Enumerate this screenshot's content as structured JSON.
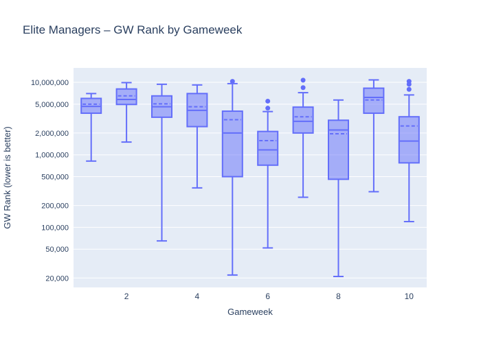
{
  "title": "Elite Managers – GW Rank by Gameweek",
  "colors": {
    "accent": "#636efa",
    "box_fill": "rgba(99,110,250,0.5)",
    "plot_bg": "#e5ecf6",
    "grid": "#ffffff",
    "text": "#2a3f5f"
  },
  "chart_data": {
    "type": "box",
    "title": "Elite Managers – GW Rank by Gameweek",
    "xlabel": "Gameweek",
    "ylabel": "GW Rank (lower is better)",
    "y_scale": "log",
    "grid": "on",
    "x_range": [
      0.5,
      10.5
    ],
    "y_range": [
      15000,
      15800000
    ],
    "x_ticks": [
      {
        "value": 2,
        "label": "2"
      },
      {
        "value": 4,
        "label": "4"
      },
      {
        "value": 6,
        "label": "6"
      },
      {
        "value": 8,
        "label": "8"
      },
      {
        "value": 10,
        "label": "10"
      }
    ],
    "y_ticks": [
      {
        "value": 10000000,
        "label": "10,000,000"
      },
      {
        "value": 5000000,
        "label": "5,000,000"
      },
      {
        "value": 2000000,
        "label": "2,000,000"
      },
      {
        "value": 1000000,
        "label": "1,000,000"
      },
      {
        "value": 500000,
        "label": "500,000"
      },
      {
        "value": 200000,
        "label": "200,000"
      },
      {
        "value": 100000,
        "label": "100,000"
      },
      {
        "value": 50000,
        "label": "50,000"
      },
      {
        "value": 20000,
        "label": "20,000"
      }
    ],
    "boxes": [
      {
        "gameweek": 1,
        "low": 820000,
        "q1": 3750000,
        "median": 4650000,
        "mean": 5000000,
        "q3": 6000000,
        "high": 7000000,
        "outliers": []
      },
      {
        "gameweek": 2,
        "low": 1500000,
        "q1": 4950000,
        "median": 5800000,
        "mean": 6500000,
        "q3": 8100000,
        "high": 9900000,
        "outliers": []
      },
      {
        "gameweek": 3,
        "low": 65000,
        "q1": 3300000,
        "median": 4600000,
        "mean": 5050000,
        "q3": 6500000,
        "high": 9400000,
        "outliers": []
      },
      {
        "gameweek": 4,
        "low": 350000,
        "q1": 2450000,
        "median": 4100000,
        "mean": 4600000,
        "q3": 7000000,
        "high": 9200000,
        "outliers": []
      },
      {
        "gameweek": 5,
        "low": 22000,
        "q1": 500000,
        "median": 2000000,
        "mean": 3050000,
        "q3": 4000000,
        "high": 9600000,
        "outliers": [
          10300000
        ]
      },
      {
        "gameweek": 6,
        "low": 52000,
        "q1": 720000,
        "median": 1170000,
        "mean": 1570000,
        "q3": 2100000,
        "high": 3950000,
        "outliers": [
          5500000,
          4400000
        ]
      },
      {
        "gameweek": 7,
        "low": 260000,
        "q1": 2000000,
        "median": 2900000,
        "mean": 3350000,
        "q3": 4550000,
        "high": 7200000,
        "outliers": [
          10700000,
          8450000
        ]
      },
      {
        "gameweek": 8,
        "low": 21000,
        "q1": 460000,
        "median": 2200000,
        "mean": 1950000,
        "q3": 3000000,
        "high": 5700000,
        "outliers": []
      },
      {
        "gameweek": 9,
        "low": 310000,
        "q1": 3750000,
        "median": 6200000,
        "mean": 5700000,
        "q3": 8300000,
        "high": 10800000,
        "outliers": []
      },
      {
        "gameweek": 10,
        "low": 120000,
        "q1": 775000,
        "median": 1550000,
        "mean": 2500000,
        "q3": 3350000,
        "high": 6700000,
        "outliers": [
          8000000,
          9400000,
          10300000
        ]
      }
    ]
  }
}
